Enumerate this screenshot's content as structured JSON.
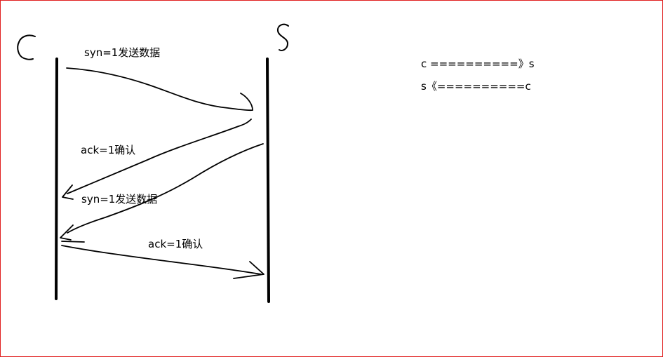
{
  "diagram": {
    "client_letter": "c",
    "server_letter": "s",
    "messages": [
      {
        "label": "syn=1发送数据"
      },
      {
        "label": "ack=1确认"
      },
      {
        "label": "syn=1发送数据"
      },
      {
        "label": "ack=1确认"
      }
    ],
    "notes": [
      "c ==========》s",
      "s《==========c"
    ]
  },
  "colors": {
    "ink": "#000000",
    "border": "#e02020",
    "background": "#ffffff"
  }
}
